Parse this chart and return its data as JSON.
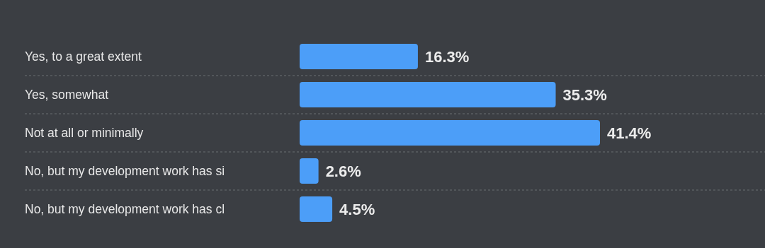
{
  "chart_data": {
    "type": "bar",
    "orientation": "horizontal",
    "categories": [
      "Yes, to a great extent",
      "Yes, somewhat",
      "Not at all or minimally",
      "No, but my development work has si",
      "No, but my development work has cl"
    ],
    "values": [
      16.3,
      35.3,
      41.4,
      2.6,
      4.5
    ],
    "value_labels": [
      "16.3%",
      "35.3%",
      "41.4%",
      "2.6%",
      "4.5%"
    ],
    "color": "#4c9ef8",
    "grid": true
  }
}
